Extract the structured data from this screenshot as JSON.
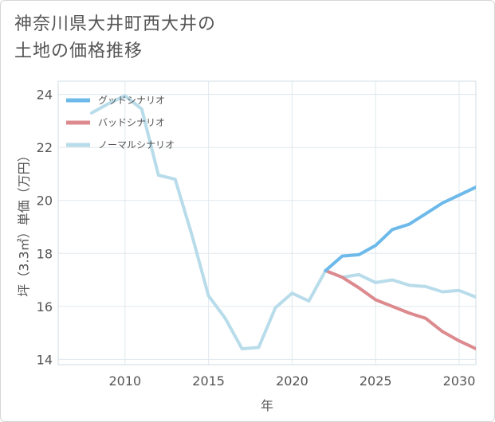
{
  "title_lines": [
    "神奈川県大井町西大井の",
    "土地の価格推移"
  ],
  "chart_data": {
    "type": "line",
    "title": "神奈川県大井町西大井の土地の価格推移",
    "xlabel": "年",
    "ylabel": "坪（3.3㎡）単価（万円）",
    "xlim": [
      2006,
      2031
    ],
    "ylim": [
      13.8,
      24.5
    ],
    "xticks": [
      2010,
      2015,
      2020,
      2025,
      2030
    ],
    "yticks": [
      14,
      16,
      18,
      20,
      22,
      24
    ],
    "grid": true,
    "legend_position": "top-left",
    "series": [
      {
        "name": "グッドシナリオ",
        "color": "#6cb9ea",
        "x": [
          2022,
          2023,
          2024,
          2025,
          2026,
          2027,
          2028,
          2029,
          2030,
          2031
        ],
        "y": [
          17.35,
          17.9,
          17.95,
          18.3,
          18.9,
          19.1,
          19.5,
          19.9,
          20.2,
          20.5
        ]
      },
      {
        "name": "バッドシナリオ",
        "color": "#dc8a8e",
        "x": [
          2022,
          2023,
          2024,
          2025,
          2026,
          2027,
          2028,
          2029,
          2030,
          2031
        ],
        "y": [
          17.35,
          17.1,
          16.7,
          16.25,
          16.0,
          15.75,
          15.55,
          15.05,
          14.7,
          14.4
        ]
      },
      {
        "name": "ノーマルシナリオ",
        "color": "#b8dcea",
        "x": [
          2008,
          2009,
          2010,
          2011,
          2012,
          2013,
          2014,
          2015,
          2016,
          2017,
          2018,
          2019,
          2020,
          2021,
          2022,
          2023,
          2024,
          2025,
          2026,
          2027,
          2028,
          2029,
          2030,
          2031
        ],
        "y": [
          23.3,
          23.65,
          23.95,
          23.45,
          20.95,
          20.8,
          18.7,
          16.4,
          15.55,
          14.4,
          14.45,
          15.95,
          16.5,
          16.2,
          17.35,
          17.1,
          17.2,
          16.9,
          17.0,
          16.8,
          16.75,
          16.55,
          16.6,
          16.35
        ]
      }
    ]
  }
}
